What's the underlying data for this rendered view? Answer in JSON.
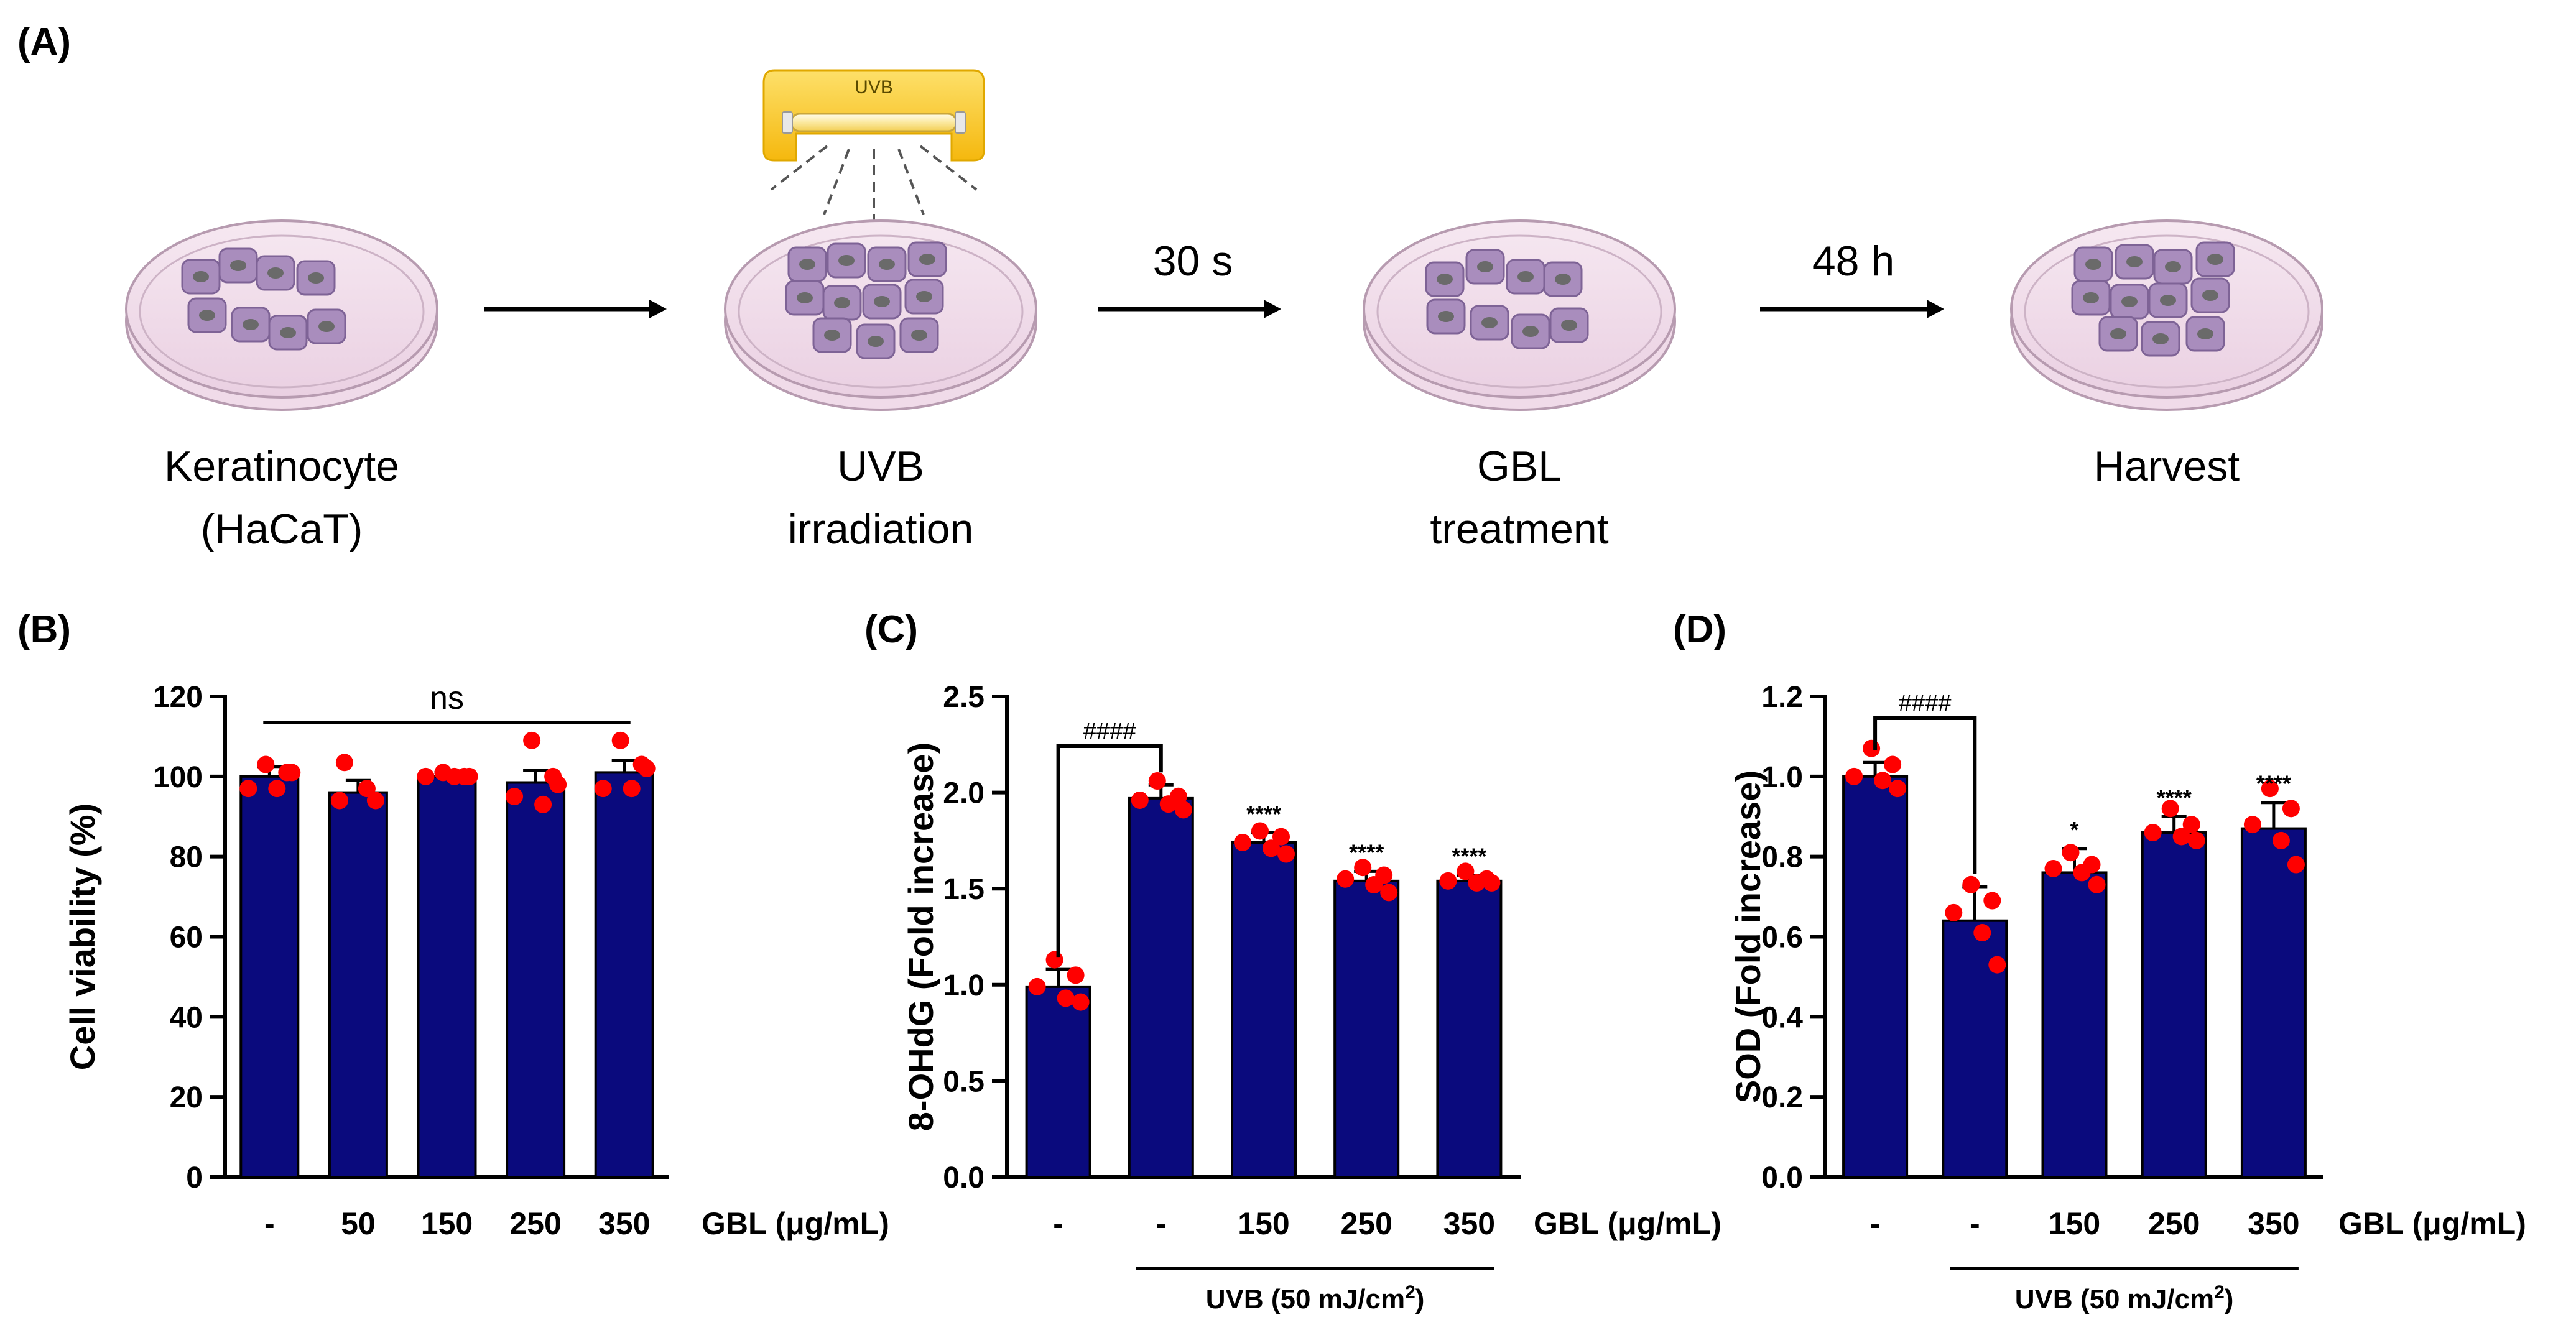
{
  "panel_a": {
    "label": "(A)",
    "lamp_label": "UVB",
    "arrow_labels": [
      "30 s",
      "48 h"
    ],
    "steps": [
      {
        "line1": "Keratinocyte",
        "line2": "(HaCaT)"
      },
      {
        "line1": "UVB",
        "line2": "irradiation"
      },
      {
        "line1": "GBL",
        "line2": "treatment"
      },
      {
        "line1": "Harvest",
        "line2": ""
      }
    ]
  },
  "colors": {
    "bar": "#0a0a7d",
    "dot": "#ff0000",
    "dish_fill": "#f0dbe9",
    "cell_fill": "#a98dbd",
    "lamp": "#f7c31b"
  },
  "chart_data": [
    {
      "panel": "(B)",
      "type": "bar",
      "ylabel": "Cell viability (%)",
      "xlabel": "GBL (μg/mL)",
      "ylim": [
        0,
        120
      ],
      "yticks": [
        0,
        20,
        40,
        60,
        80,
        100,
        120
      ],
      "tick_labels": [
        "0",
        "20",
        "40",
        "60",
        "80",
        "100",
        "120"
      ],
      "categories": [
        "-",
        "50",
        "150",
        "250",
        "350"
      ],
      "values": [
        100,
        96,
        100,
        98.5,
        101
      ],
      "errors": [
        2.5,
        3,
        1,
        3,
        3
      ],
      "points": [
        [
          103,
          101,
          97,
          97,
          101
        ],
        [
          103.5,
          97,
          94,
          94
        ],
        [
          101,
          100,
          100,
          100,
          100
        ],
        [
          109,
          100,
          95,
          93,
          98
        ],
        [
          109,
          103,
          97,
          97,
          102
        ]
      ],
      "annotations": [
        {
          "text": "ns",
          "from": 0,
          "to": 4
        }
      ],
      "uvb_bracket": null
    },
    {
      "panel": "(C)",
      "type": "bar",
      "ylabel": "8-OHdG (Fold increase)",
      "xlabel": "GBL (μg/mL)",
      "ylim": [
        0,
        2.5
      ],
      "yticks": [
        0,
        0.5,
        1.0,
        1.5,
        2.0,
        2.5
      ],
      "tick_labels": [
        "0.0",
        "0.5",
        "1.0",
        "1.5",
        "2.0",
        "2.5"
      ],
      "categories": [
        "-",
        "-",
        "150",
        "250",
        "350"
      ],
      "values": [
        0.99,
        1.97,
        1.74,
        1.54,
        1.54
      ],
      "errors": [
        0.09,
        0.07,
        0.05,
        0.05,
        0.03
      ],
      "points": [
        [
          1.13,
          1.05,
          0.99,
          0.93,
          0.91
        ],
        [
          2.06,
          1.98,
          1.96,
          1.94,
          1.91
        ],
        [
          1.8,
          1.77,
          1.74,
          1.71,
          1.68
        ],
        [
          1.61,
          1.57,
          1.55,
          1.52,
          1.48
        ],
        [
          1.59,
          1.55,
          1.54,
          1.53,
          1.53
        ]
      ],
      "significance": [
        "",
        "",
        "****",
        "****",
        "****"
      ],
      "hash_bracket": {
        "text": "####",
        "from": 0,
        "to": 1
      },
      "uvb_bracket": {
        "text": "UVB (50 mJ/cm",
        "sup": "2",
        "close": ")",
        "from": 1,
        "to": 4
      }
    },
    {
      "panel": "(D)",
      "type": "bar",
      "ylabel": "SOD (Fold increase)",
      "xlabel": "GBL (μg/mL)",
      "ylim": [
        0,
        1.2
      ],
      "yticks": [
        0,
        0.2,
        0.4,
        0.6,
        0.8,
        1.0,
        1.2
      ],
      "tick_labels": [
        "0.0",
        "0.2",
        "0.4",
        "0.6",
        "0.8",
        "1.0",
        "1.2"
      ],
      "categories": [
        "-",
        "-",
        "150",
        "250",
        "350"
      ],
      "values": [
        1.0,
        0.64,
        0.76,
        0.86,
        0.87
      ],
      "errors": [
        0.035,
        0.085,
        0.06,
        0.04,
        0.065
      ],
      "points": [
        [
          1.07,
          1.03,
          1.0,
          0.99,
          0.97
        ],
        [
          0.73,
          0.69,
          0.66,
          0.61,
          0.53
        ],
        [
          0.81,
          0.78,
          0.77,
          0.76,
          0.73
        ],
        [
          0.92,
          0.88,
          0.86,
          0.85,
          0.84
        ],
        [
          0.97,
          0.92,
          0.88,
          0.84,
          0.78
        ]
      ],
      "significance": [
        "",
        "",
        "*",
        "****",
        "****"
      ],
      "hash_bracket": {
        "text": "####",
        "from": 0,
        "to": 1
      },
      "uvb_bracket": {
        "text": "UVB (50 mJ/cm",
        "sup": "2",
        "close": ")",
        "from": 1,
        "to": 4
      }
    }
  ]
}
